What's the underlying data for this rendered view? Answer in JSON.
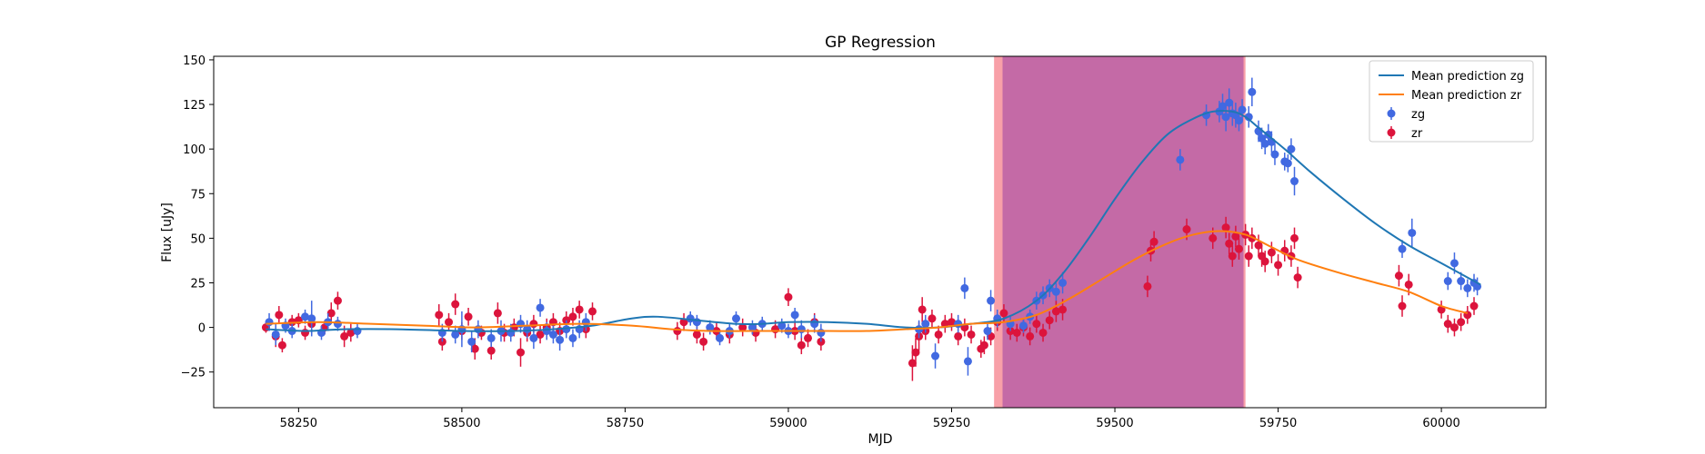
{
  "chart_data": {
    "type": "scatter",
    "title": "GP Regression",
    "xlabel": "MJD",
    "ylabel": "Flux [uJy]",
    "xlim": [
      58120,
      60160
    ],
    "ylim": [
      -45,
      152
    ],
    "x_ticks": [
      58250,
      58500,
      58750,
      59000,
      59250,
      59500,
      59750,
      60000
    ],
    "y_ticks": [
      -25,
      0,
      25,
      50,
      75,
      100,
      125,
      150
    ],
    "legend_position": "top-right",
    "spans": [
      {
        "x0": 59315,
        "x1": 59700,
        "color": "#f8a0a8"
      },
      {
        "x0": 59328,
        "x1": 59697,
        "color": "#c46aa6"
      }
    ],
    "lines": [
      {
        "name": "Mean prediction zg",
        "color": "#1f77b4",
        "x": [
          58200,
          58260,
          58320,
          58400,
          58500,
          58580,
          58640,
          58700,
          58760,
          58800,
          58860,
          58920,
          58960,
          59000,
          59060,
          59120,
          59180,
          59230,
          59280,
          59330,
          59380,
          59420,
          59460,
          59500,
          59540,
          59580,
          59620,
          59650,
          59680,
          59700,
          59720,
          59760,
          59800,
          59850,
          59900,
          59950,
          60000,
          60060
        ],
        "y": [
          -1,
          -2,
          -1,
          -1,
          -2,
          -2,
          -1,
          1,
          5,
          6,
          4,
          2,
          2,
          3,
          3,
          2,
          0,
          0,
          2,
          5,
          15,
          30,
          50,
          72,
          92,
          108,
          117,
          121,
          121,
          118,
          112,
          100,
          87,
          72,
          58,
          46,
          36,
          24
        ]
      },
      {
        "name": "Mean prediction zr",
        "color": "#ff7f0e",
        "x": [
          58200,
          58280,
          58360,
          58440,
          58520,
          58600,
          58680,
          58760,
          58820,
          58880,
          58940,
          59000,
          59060,
          59120,
          59180,
          59230,
          59280,
          59330,
          59380,
          59430,
          59480,
          59530,
          59580,
          59620,
          59660,
          59700,
          59740,
          59780,
          59840,
          59900,
          59950,
          60000,
          60040
        ],
        "y": [
          2,
          3,
          2,
          1,
          0,
          1,
          2,
          1,
          -1,
          -2,
          -2,
          -2,
          -2,
          -2,
          -1,
          0,
          2,
          3,
          7,
          16,
          27,
          38,
          47,
          52,
          54,
          52,
          45,
          38,
          31,
          25,
          20,
          12,
          8
        ]
      }
    ],
    "series": [
      {
        "name": "zg",
        "color": "#4169e1",
        "points": [
          [
            58205,
            3,
            5
          ],
          [
            58215,
            -4,
            6
          ],
          [
            58230,
            1,
            4
          ],
          [
            58240,
            -2,
            4
          ],
          [
            58260,
            6,
            4
          ],
          [
            58270,
            5,
            10
          ],
          [
            58285,
            -3,
            4
          ],
          [
            58295,
            3,
            5
          ],
          [
            58310,
            2,
            4
          ],
          [
            58340,
            -2,
            4
          ],
          [
            58470,
            -3,
            5
          ],
          [
            58490,
            -4,
            5
          ],
          [
            58500,
            -1,
            10
          ],
          [
            58515,
            -8,
            6
          ],
          [
            58525,
            -1,
            5
          ],
          [
            58545,
            -6,
            5
          ],
          [
            58560,
            -2,
            6
          ],
          [
            58575,
            -3,
            5
          ],
          [
            58590,
            2,
            5
          ],
          [
            58600,
            -1,
            5
          ],
          [
            58610,
            -6,
            6
          ],
          [
            58620,
            11,
            5
          ],
          [
            58630,
            -2,
            5
          ],
          [
            58640,
            -4,
            5
          ],
          [
            58650,
            -7,
            6
          ],
          [
            58660,
            -1,
            5
          ],
          [
            58670,
            -6,
            5
          ],
          [
            58680,
            -1,
            5
          ],
          [
            58690,
            3,
            5
          ],
          [
            58850,
            5,
            4
          ],
          [
            58860,
            3,
            4
          ],
          [
            58880,
            0,
            4
          ],
          [
            58895,
            -6,
            4
          ],
          [
            58910,
            -2,
            4
          ],
          [
            58920,
            5,
            4
          ],
          [
            58945,
            0,
            4
          ],
          [
            58960,
            2,
            4
          ],
          [
            58990,
            1,
            4
          ],
          [
            59000,
            -2,
            4
          ],
          [
            59010,
            7,
            4
          ],
          [
            59020,
            -1,
            5
          ],
          [
            59040,
            2,
            5
          ],
          [
            59050,
            -3,
            5
          ],
          [
            59200,
            -1,
            5
          ],
          [
            59210,
            2,
            5
          ],
          [
            59225,
            -16,
            7
          ],
          [
            59260,
            2,
            5
          ],
          [
            59270,
            22,
            6
          ],
          [
            59275,
            -19,
            8
          ],
          [
            59305,
            -2,
            5
          ],
          [
            59310,
            15,
            6
          ],
          [
            59320,
            5,
            5
          ],
          [
            59340,
            2,
            4
          ],
          [
            59360,
            1,
            4
          ],
          [
            59370,
            6,
            4
          ],
          [
            59380,
            15,
            5
          ],
          [
            59390,
            18,
            5
          ],
          [
            59400,
            22,
            5
          ],
          [
            59410,
            20,
            5
          ],
          [
            59420,
            25,
            6
          ],
          [
            59600,
            94,
            6
          ],
          [
            59640,
            119,
            6
          ],
          [
            59660,
            121,
            6
          ],
          [
            59665,
            124,
            7
          ],
          [
            59670,
            118,
            8
          ],
          [
            59675,
            126,
            8
          ],
          [
            59680,
            120,
            7
          ],
          [
            59685,
            119,
            7
          ],
          [
            59690,
            116,
            6
          ],
          [
            59695,
            122,
            6
          ],
          [
            59705,
            118,
            6
          ],
          [
            59710,
            132,
            8
          ],
          [
            59720,
            110,
            6
          ],
          [
            59725,
            106,
            6
          ],
          [
            59730,
            103,
            6
          ],
          [
            59735,
            108,
            6
          ],
          [
            59740,
            104,
            6
          ],
          [
            59745,
            97,
            6
          ],
          [
            59760,
            93,
            5
          ],
          [
            59765,
            92,
            5
          ],
          [
            59770,
            100,
            6
          ],
          [
            59775,
            82,
            8
          ],
          [
            59940,
            44,
            5
          ],
          [
            59955,
            53,
            8
          ],
          [
            60010,
            26,
            5
          ],
          [
            60020,
            36,
            6
          ],
          [
            60030,
            26,
            5
          ],
          [
            60040,
            22,
            5
          ],
          [
            60050,
            25,
            5
          ],
          [
            60055,
            23,
            5
          ]
        ]
      },
      {
        "name": "zr",
        "color": "#dc143c",
        "points": [
          [
            58200,
            0,
            3
          ],
          [
            58215,
            -5,
            6
          ],
          [
            58220,
            7,
            5
          ],
          [
            58225,
            -10,
            4
          ],
          [
            58240,
            3,
            4
          ],
          [
            58250,
            4,
            4
          ],
          [
            58260,
            -3,
            4
          ],
          [
            58270,
            2,
            6
          ],
          [
            58290,
            0,
            4
          ],
          [
            58300,
            8,
            6
          ],
          [
            58310,
            15,
            5
          ],
          [
            58320,
            -5,
            6
          ],
          [
            58330,
            -3,
            5
          ],
          [
            58465,
            7,
            6
          ],
          [
            58470,
            -8,
            5
          ],
          [
            58480,
            3,
            5
          ],
          [
            58490,
            13,
            6
          ],
          [
            58500,
            -2,
            5
          ],
          [
            58510,
            6,
            5
          ],
          [
            58520,
            -12,
            6
          ],
          [
            58530,
            -3,
            4
          ],
          [
            58545,
            -13,
            5
          ],
          [
            58555,
            8,
            6
          ],
          [
            58565,
            -3,
            5
          ],
          [
            58580,
            0,
            5
          ],
          [
            58590,
            -14,
            8
          ],
          [
            58600,
            -3,
            5
          ],
          [
            58610,
            2,
            5
          ],
          [
            58620,
            -4,
            5
          ],
          [
            58630,
            0,
            5
          ],
          [
            58640,
            3,
            5
          ],
          [
            58650,
            -2,
            5
          ],
          [
            58660,
            4,
            5
          ],
          [
            58670,
            6,
            5
          ],
          [
            58680,
            10,
            5
          ],
          [
            58690,
            -1,
            5
          ],
          [
            58700,
            9,
            5
          ],
          [
            58830,
            -2,
            5
          ],
          [
            58840,
            3,
            5
          ],
          [
            58860,
            -4,
            5
          ],
          [
            58870,
            -8,
            5
          ],
          [
            58890,
            -2,
            5
          ],
          [
            58910,
            -4,
            5
          ],
          [
            58930,
            0,
            5
          ],
          [
            58950,
            -3,
            5
          ],
          [
            58980,
            -1,
            5
          ],
          [
            59000,
            17,
            5
          ],
          [
            59010,
            -2,
            5
          ],
          [
            59020,
            -10,
            5
          ],
          [
            59030,
            -6,
            5
          ],
          [
            59040,
            3,
            5
          ],
          [
            59050,
            -8,
            5
          ],
          [
            59190,
            -20,
            10
          ],
          [
            59195,
            -14,
            8
          ],
          [
            59200,
            -5,
            8
          ],
          [
            59205,
            10,
            7
          ],
          [
            59210,
            -2,
            5
          ],
          [
            59220,
            5,
            5
          ],
          [
            59230,
            -4,
            5
          ],
          [
            59240,
            2,
            5
          ],
          [
            59250,
            3,
            5
          ],
          [
            59260,
            -5,
            5
          ],
          [
            59270,
            0,
            5
          ],
          [
            59280,
            -4,
            5
          ],
          [
            59295,
            -12,
            5
          ],
          [
            59300,
            -10,
            5
          ],
          [
            59310,
            -5,
            5
          ],
          [
            59320,
            3,
            5
          ],
          [
            59330,
            8,
            5
          ],
          [
            59340,
            -2,
            5
          ],
          [
            59350,
            -3,
            5
          ],
          [
            59360,
            0,
            5
          ],
          [
            59370,
            -5,
            5
          ],
          [
            59380,
            2,
            5
          ],
          [
            59390,
            -3,
            5
          ],
          [
            59400,
            4,
            5
          ],
          [
            59410,
            9,
            6
          ],
          [
            59420,
            10,
            6
          ],
          [
            59550,
            23,
            6
          ],
          [
            59555,
            43,
            6
          ],
          [
            59560,
            48,
            6
          ],
          [
            59610,
            55,
            6
          ],
          [
            59650,
            50,
            6
          ],
          [
            59670,
            56,
            6
          ],
          [
            59675,
            47,
            6
          ],
          [
            59680,
            40,
            6
          ],
          [
            59685,
            51,
            6
          ],
          [
            59690,
            44,
            6
          ],
          [
            59700,
            52,
            6
          ],
          [
            59705,
            40,
            6
          ],
          [
            59710,
            50,
            6
          ],
          [
            59720,
            46,
            6
          ],
          [
            59725,
            40,
            6
          ],
          [
            59730,
            37,
            6
          ],
          [
            59740,
            42,
            6
          ],
          [
            59750,
            35,
            6
          ],
          [
            59760,
            43,
            6
          ],
          [
            59770,
            40,
            6
          ],
          [
            59775,
            50,
            6
          ],
          [
            59780,
            28,
            6
          ],
          [
            59935,
            29,
            6
          ],
          [
            59940,
            12,
            6
          ],
          [
            59950,
            24,
            6
          ],
          [
            60000,
            10,
            5
          ],
          [
            60010,
            2,
            5
          ],
          [
            60020,
            0,
            5
          ],
          [
            60030,
            3,
            5
          ],
          [
            60040,
            7,
            5
          ],
          [
            60050,
            12,
            5
          ]
        ]
      }
    ]
  }
}
